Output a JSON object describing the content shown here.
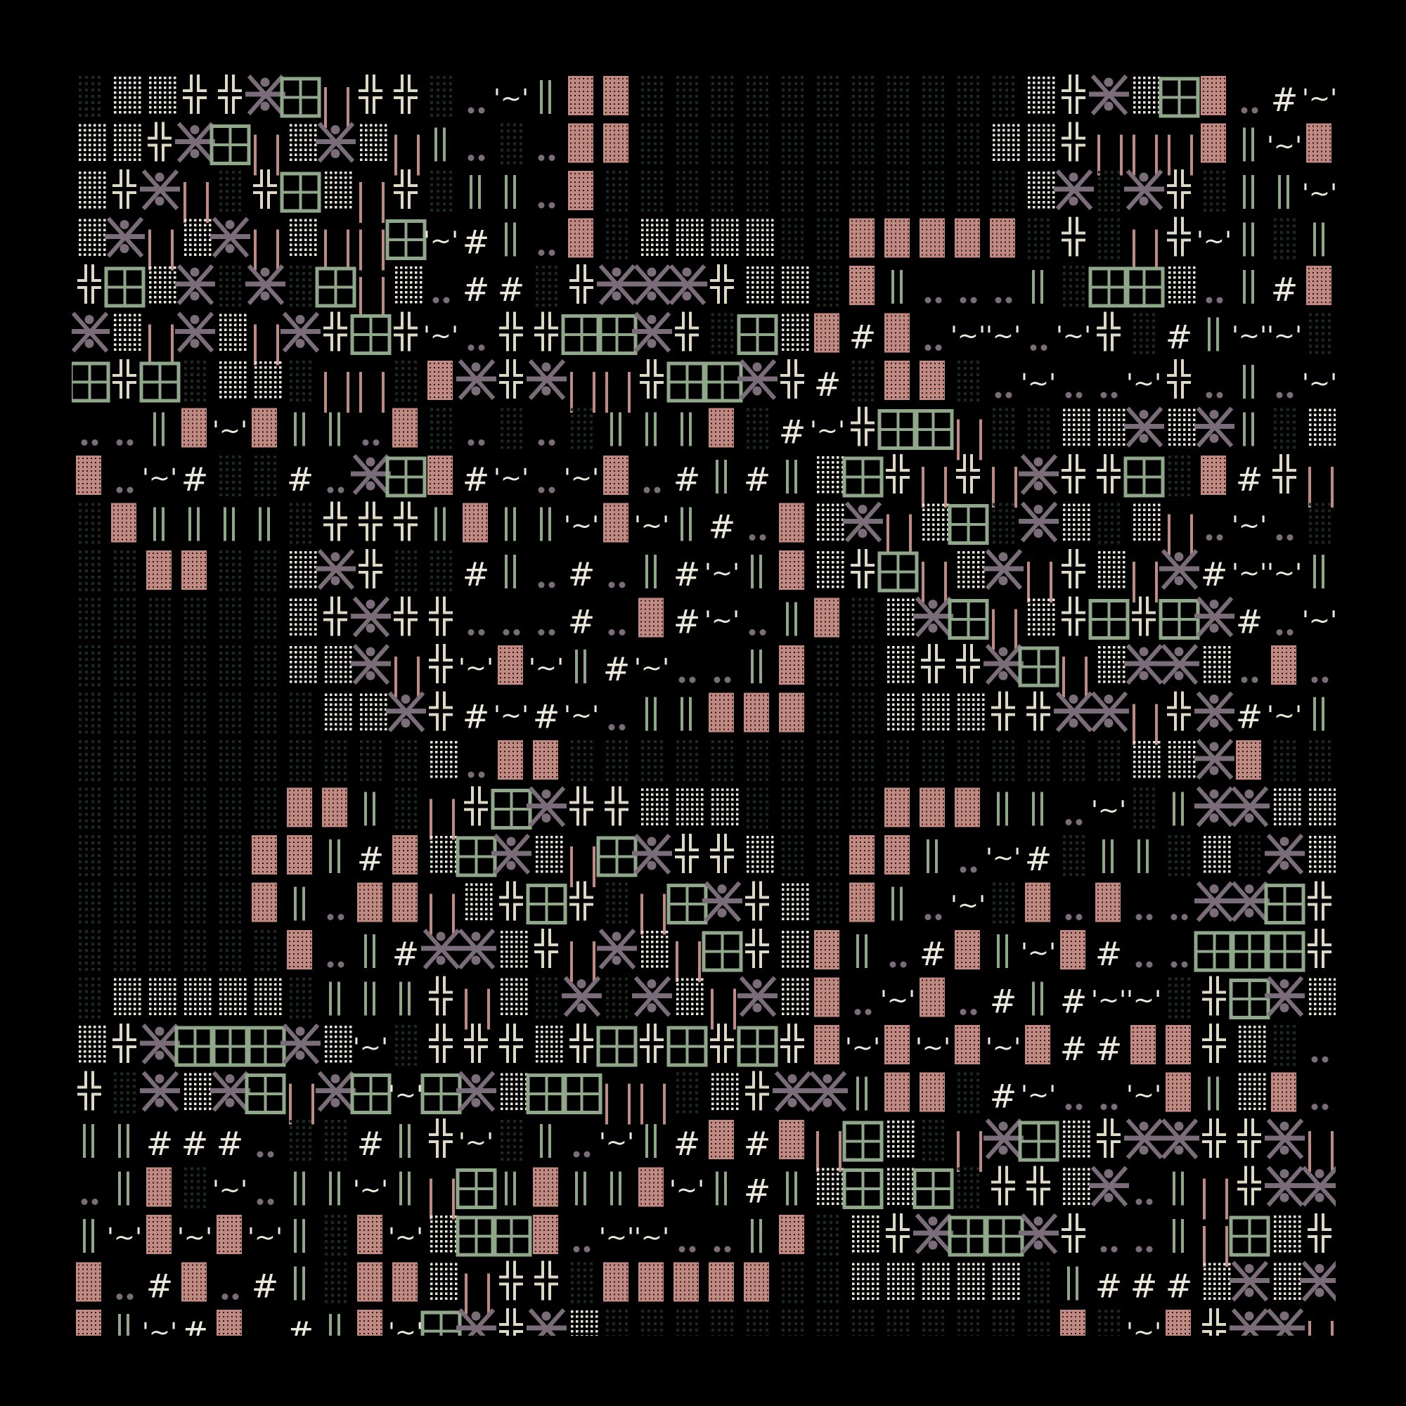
{
  "background": "#000000",
  "colors": {
    "cream": "#ddd9c4",
    "cream_dots": "#ece8dc",
    "dark_dots": "#1c2b22",
    "pink": "#c08a82",
    "purple": "#7b6c7a",
    "green": "#8fa88a"
  },
  "legend": {
    "D": {
      "name": "dark-dot-tile"
    },
    "W": {
      "name": "light-dot-tile"
    },
    "P": {
      "name": "pink-block-tile"
    },
    "X": {
      "name": "asterisk-figure-tile"
    },
    "G": {
      "name": "window-tile"
    },
    "C": {
      "name": "cross-tile"
    },
    "L": {
      "name": "pink-bars-tile"
    },
    "V": {
      "name": "green-bars-tile"
    },
    "H": {
      "name": "hash-tile",
      "glyph": "#"
    },
    "T": {
      "name": "tilde-tile",
      "glyph": "'~'"
    },
    "O": {
      "name": "dots-pair-tile"
    },
    " ": {
      "name": "empty-tile"
    }
  },
  "grid": [
    "DWWCCXGLCCDOTVPPDDDDDDDDDDDWCXWGPOHT",
    "WWCXGLWXWLVODOPPDDDDDDDDDDWWCLLLPVTP",
    "WCXLDCGWLCDVVOPDDDDDDDDDDDDWXDXCDVVT",
    "WXLWXLWLLGTHVOPDWWWWDDPPPPPDCDLCTVDV",
    "CGWXDXDGLWOHHDCXXXCWWDPVOOOVDGGWOVHP",
    "XWLXWLXCGCTOCCGGXCDGWPHPOTTOTCDHVTTD",
    "GCGDWWDLLDPXCXLLCGGXCHDPPDOTOOTCOVOT",
    "OOVPTPVVOPDODODVVVPDHTCGGLDDWWXWXVDW",
    "POTHDDHOXGPHTOTPOHVHVWGCLCLXCCGDPHCL",
    "DPVVVVDCCCVPVVTPTVHOPWXLWGDXWDWLOTOD",
    "DDPPDDWXCDDHVOHOVHTVPWCGLWXLCWLXHTTV",
    "DDDDDDWCXCCOOOHOPHTOVPDWXGLWCGCGXHOT",
    "DDDDDDWWXLCTPTVHTOOVPDDWCCXGLWXXWOPO",
    "DDDDDDDWWXCHTHTOVVPPPDDWWWCCXXLCXHTV",
    "DDDDDDDDDDWOPPDDDDDDDDDDDDDDDDWWXPDD",
    "DDDDDDPPVDLCGXCCWWWDDDDPPPVVOTDVXXWW",
    "DDDDDPPVHPWGXWLGXCCWDDPPVOTHDVVDWDXW",
    "DDDDDPVOPPLWCGCDLGXCWDPVOTDPOPOOXXGC",
    "DDDDDDPOVHXXWCLXWLGCWPVOHPVTPHOOGGGC",
    "DWWWWWDVVVCLWDXDXWLXWPOTPOHVHTTDCGXW",
    "WCXGGGXWTDCCCWCGCGCGCPTPTPTPHHPPCWDO",
    "CDXWXGLXGTGXWGGLLDWCXXVPPDHTOOTPVWPO",
    "VVHHHODDHVCTDVOTVHPHPLGWDLXGWCXXCCXL",
    "OVPDTOVVTVLGVPVVPTVHVWGWGDCCWXOVLCXX",
    "VTPTPTVDPTWGGPOTTOOVPDWCXGGXCOOVLGWC",
    "POHPOHVDPPWLCCDPPPPPDDWWWWWDVHHHWXWX",
    "PVTHPOHVPTGXCXWDDDDDDDDDDDDDPDTPCXXL"
  ]
}
